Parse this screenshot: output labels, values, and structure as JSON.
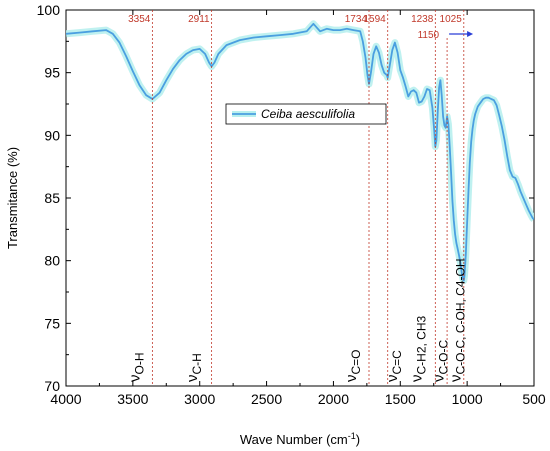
{
  "chart_data": {
    "type": "line",
    "title": "",
    "xlabel": "Wave Number (cm",
    "xlabel_sup": "-1",
    "xlabel_end": ")",
    "ylabel": "Transmitance (%)",
    "xlim": [
      4000,
      500
    ],
    "ylim": [
      70,
      100
    ],
    "x_ticks": [
      4000,
      3500,
      3000,
      2500,
      2000,
      1500,
      1000,
      500
    ],
    "x_tick_labels": [
      "4000",
      "3500",
      "3000",
      "2500",
      "2000",
      "1500",
      "1000",
      "500"
    ],
    "y_ticks": [
      70,
      75,
      80,
      85,
      90,
      95,
      100
    ],
    "y_tick_labels": [
      "70",
      "75",
      "80",
      "85",
      "90",
      "95",
      "100"
    ],
    "grid": false,
    "legend_position": "center-right",
    "line_color": "#4a9fe0",
    "band_color": "#b8f0ee",
    "marker_color": "#c0392b",
    "series": [
      {
        "name": "Ceiba aesculifolia",
        "x": [
          4000,
          3900,
          3800,
          3700,
          3650,
          3600,
          3550,
          3500,
          3450,
          3400,
          3354,
          3300,
          3250,
          3200,
          3150,
          3100,
          3050,
          3000,
          2960,
          2930,
          2911,
          2890,
          2860,
          2800,
          2700,
          2600,
          2500,
          2400,
          2300,
          2200,
          2150,
          2100,
          2050,
          2000,
          1950,
          1900,
          1850,
          1800,
          1780,
          1760,
          1745,
          1734,
          1720,
          1700,
          1680,
          1660,
          1640,
          1620,
          1600,
          1594,
          1580,
          1560,
          1540,
          1520,
          1500,
          1480,
          1460,
          1440,
          1420,
          1400,
          1380,
          1360,
          1340,
          1320,
          1300,
          1280,
          1260,
          1245,
          1238,
          1230,
          1220,
          1210,
          1200,
          1190,
          1180,
          1170,
          1160,
          1150,
          1140,
          1130,
          1120,
          1110,
          1100,
          1090,
          1080,
          1070,
          1060,
          1050,
          1040,
          1030,
          1025,
          1020,
          1010,
          1000,
          990,
          980,
          970,
          960,
          950,
          940,
          920,
          900,
          880,
          860,
          840,
          820,
          800,
          780,
          760,
          740,
          720,
          700,
          680,
          660,
          640,
          620,
          600,
          580,
          560,
          540,
          520,
          510,
          500
        ],
        "y": [
          98.1,
          98.2,
          98.3,
          98.4,
          98.1,
          97.4,
          96.3,
          95.1,
          94.0,
          93.2,
          92.9,
          93.4,
          94.4,
          95.3,
          96.0,
          96.5,
          96.8,
          96.9,
          96.5,
          95.8,
          95.5,
          95.8,
          96.5,
          97.2,
          97.6,
          97.8,
          97.9,
          98.0,
          98.1,
          98.3,
          98.9,
          98.3,
          98.5,
          98.4,
          98.4,
          98.5,
          98.4,
          98.3,
          97.5,
          96.2,
          94.8,
          94.1,
          95.0,
          96.5,
          97.1,
          96.6,
          95.6,
          95.0,
          94.8,
          94.6,
          95.5,
          96.8,
          97.4,
          96.6,
          95.2,
          94.6,
          93.9,
          93.1,
          93.5,
          93.6,
          93.4,
          92.6,
          92.7,
          93.1,
          93.7,
          93.6,
          92.2,
          90.2,
          89.1,
          89.6,
          91.8,
          93.8,
          94.4,
          93.2,
          91.5,
          90.8,
          90.6,
          91.5,
          90.9,
          89.0,
          87.0,
          84.8,
          83.2,
          82.1,
          81.4,
          80.9,
          80.4,
          79.8,
          79.0,
          78.5,
          78.4,
          78.8,
          80.5,
          83.0,
          85.6,
          87.8,
          89.5,
          90.5,
          91.2,
          91.7,
          92.3,
          92.6,
          92.9,
          93.0,
          93.0,
          92.9,
          92.8,
          92.4,
          91.6,
          90.7,
          89.6,
          88.3,
          87.2,
          86.7,
          86.6,
          86.1,
          85.5,
          85.0,
          84.5,
          84.0,
          83.6,
          83.4,
          83.3
        ]
      }
    ],
    "peak_markers": [
      {
        "x": 3354,
        "label": "3354"
      },
      {
        "x": 2911,
        "label": "2911"
      },
      {
        "x": 1734,
        "label": "1734"
      },
      {
        "x": 1594,
        "label": "1594"
      },
      {
        "x": 1238,
        "label": "1238"
      },
      {
        "x": 1150,
        "label": "1150"
      },
      {
        "x": 1025,
        "label": "1025"
      }
    ],
    "vibration_labels": [
      {
        "x": 3450,
        "sub": "O-H",
        "text": ""
      },
      {
        "x": 3020,
        "sub": "C-H",
        "text": ""
      },
      {
        "x": 1830,
        "sub": "C=O",
        "text": ""
      },
      {
        "x": 1525,
        "sub": "C=C",
        "text": ""
      },
      {
        "x": 1340,
        "sub": "C-H2, CH3",
        "text": ""
      },
      {
        "x": 1175,
        "sub": "C-O-C",
        "text": ""
      },
      {
        "x": 1050,
        "sub": "C-O-C, C-OH, C4-OH",
        "text": ""
      }
    ]
  }
}
